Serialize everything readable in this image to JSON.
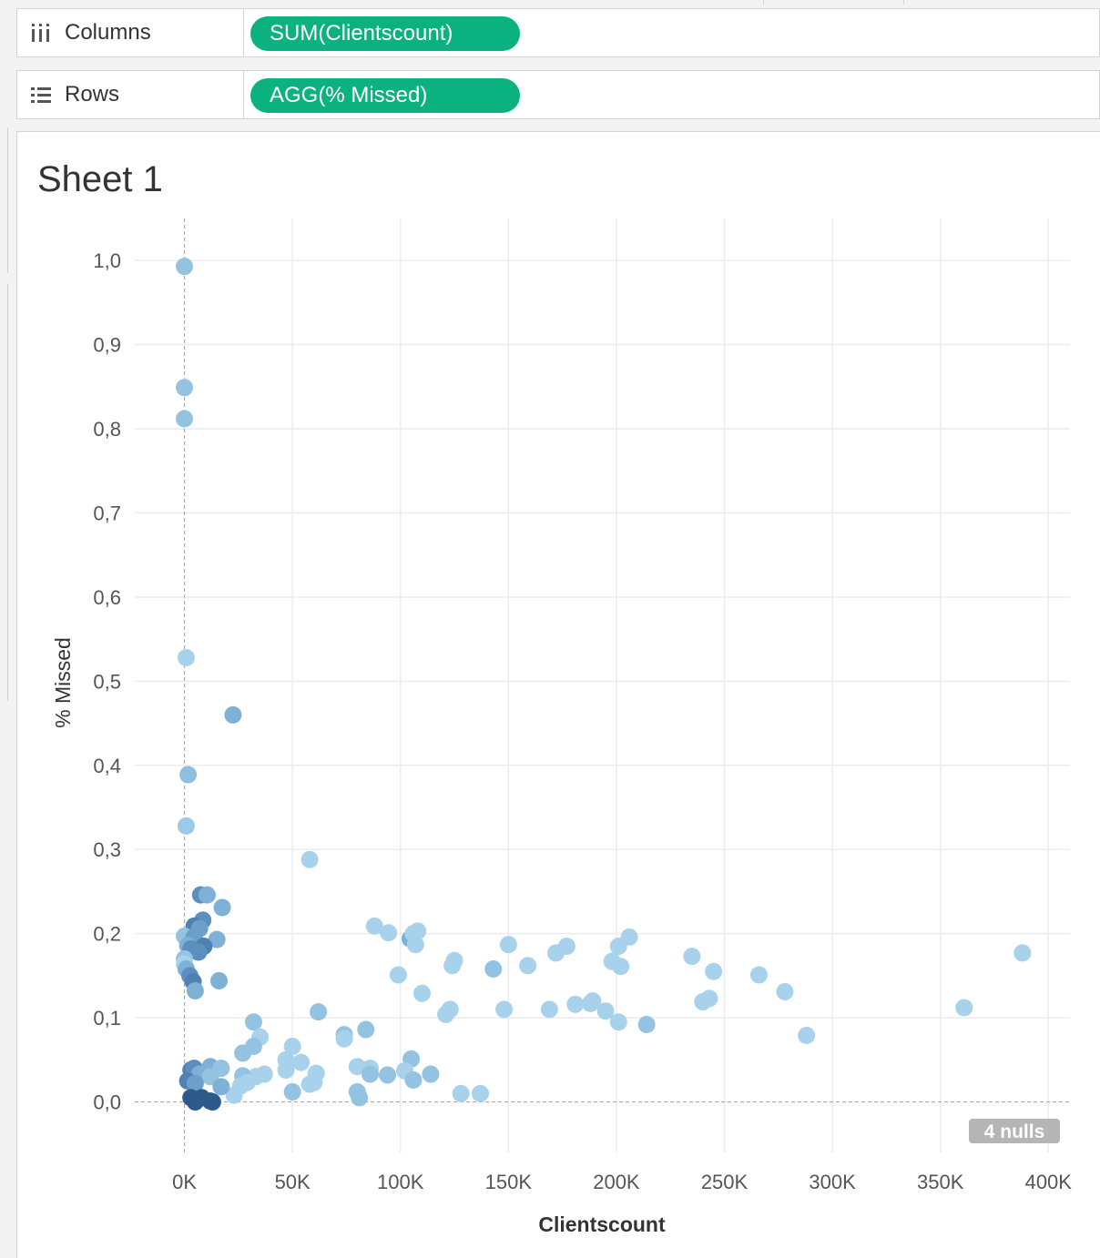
{
  "shelves": {
    "columns": {
      "label": "Columns",
      "pill": "SUM(Clientscount)"
    },
    "rows": {
      "label": "Rows",
      "pill": "AGG(% Missed)"
    }
  },
  "sheet": {
    "title": "Sheet 1"
  },
  "colors": {
    "pill": "#0bb27f",
    "nulls_badge": "#b5b5b5"
  },
  "chart_data": {
    "type": "scatter",
    "xlabel": "Clientscount",
    "ylabel": "% Missed",
    "xlim": [
      -23000,
      410000
    ],
    "ylim": [
      -0.06,
      1.05
    ],
    "x_ticks": [
      0,
      50000,
      100000,
      150000,
      200000,
      250000,
      300000,
      350000,
      400000
    ],
    "x_tick_labels": [
      "0K",
      "50K",
      "100K",
      "150K",
      "200K",
      "250K",
      "300K",
      "350K",
      "400K"
    ],
    "y_ticks": [
      0,
      0.1,
      0.2,
      0.3,
      0.4,
      0.5,
      0.6,
      0.7,
      0.8,
      0.9,
      1.0
    ],
    "y_tick_labels": [
      "0,0",
      "0,1",
      "0,2",
      "0,3",
      "0,4",
      "0,5",
      "0,6",
      "0,7",
      "0,8",
      "0,9",
      "1,0"
    ],
    "grid": true,
    "nulls_label": "4 nulls",
    "points": [
      {
        "x": 0,
        "y": 0.993,
        "c": "#94c3e1"
      },
      {
        "x": 0,
        "y": 0.849,
        "c": "#94c3e1"
      },
      {
        "x": 0,
        "y": 0.812,
        "c": "#94c3e1"
      },
      {
        "x": 800,
        "y": 0.528,
        "c": "#a8d2ec"
      },
      {
        "x": 22500,
        "y": 0.46,
        "c": "#7fb1d6"
      },
      {
        "x": 1700,
        "y": 0.389,
        "c": "#8fbfe0"
      },
      {
        "x": 800,
        "y": 0.328,
        "c": "#9cc9e7"
      },
      {
        "x": 58000,
        "y": 0.288,
        "c": "#a8d2ec"
      },
      {
        "x": 7500,
        "y": 0.246,
        "c": "#5c8fbe"
      },
      {
        "x": 10500,
        "y": 0.246,
        "c": "#7fb1d6"
      },
      {
        "x": 17500,
        "y": 0.231,
        "c": "#7fb1d6"
      },
      {
        "x": 8500,
        "y": 0.216,
        "c": "#5c8fbe"
      },
      {
        "x": 4500,
        "y": 0.209,
        "c": "#4f82b3"
      },
      {
        "x": 7000,
        "y": 0.206,
        "c": "#6c9fca"
      },
      {
        "x": 0,
        "y": 0.197,
        "c": "#94c3e1"
      },
      {
        "x": 4500,
        "y": 0.196,
        "c": "#6c9fca"
      },
      {
        "x": 15000,
        "y": 0.193,
        "c": "#7fb1d6"
      },
      {
        "x": 1500,
        "y": 0.186,
        "c": "#7fb1d6"
      },
      {
        "x": 9000,
        "y": 0.185,
        "c": "#4f82b3"
      },
      {
        "x": 3000,
        "y": 0.182,
        "c": "#5c8fbe"
      },
      {
        "x": 6500,
        "y": 0.178,
        "c": "#5c8fbe"
      },
      {
        "x": 0,
        "y": 0.17,
        "c": "#94c3e1"
      },
      {
        "x": 0,
        "y": 0.164,
        "c": "#a8d2ec"
      },
      {
        "x": 800,
        "y": 0.158,
        "c": "#7fb1d6"
      },
      {
        "x": 2500,
        "y": 0.15,
        "c": "#5c8fbe"
      },
      {
        "x": 4000,
        "y": 0.143,
        "c": "#4f82b3"
      },
      {
        "x": 16000,
        "y": 0.144,
        "c": "#7fb1d6"
      },
      {
        "x": 5000,
        "y": 0.132,
        "c": "#7fb1d6"
      },
      {
        "x": 88000,
        "y": 0.209,
        "c": "#a8d2ec"
      },
      {
        "x": 94500,
        "y": 0.201,
        "c": "#a8d2ec"
      },
      {
        "x": 104500,
        "y": 0.194,
        "c": "#7fb1d6"
      },
      {
        "x": 106000,
        "y": 0.2,
        "c": "#a8d2ec"
      },
      {
        "x": 108000,
        "y": 0.203,
        "c": "#a8d2ec"
      },
      {
        "x": 107000,
        "y": 0.187,
        "c": "#a8d2ec"
      },
      {
        "x": 150000,
        "y": 0.187,
        "c": "#a8d2ec"
      },
      {
        "x": 177000,
        "y": 0.185,
        "c": "#a8d2ec"
      },
      {
        "x": 172000,
        "y": 0.177,
        "c": "#a8d2ec"
      },
      {
        "x": 206000,
        "y": 0.196,
        "c": "#a8d2ec"
      },
      {
        "x": 201000,
        "y": 0.185,
        "c": "#a8d2ec"
      },
      {
        "x": 198000,
        "y": 0.167,
        "c": "#a8d2ec"
      },
      {
        "x": 202000,
        "y": 0.161,
        "c": "#a8d2ec"
      },
      {
        "x": 125000,
        "y": 0.168,
        "c": "#a8d2ec"
      },
      {
        "x": 124000,
        "y": 0.162,
        "c": "#a8d2ec"
      },
      {
        "x": 143000,
        "y": 0.158,
        "c": "#94c3e1"
      },
      {
        "x": 159000,
        "y": 0.162,
        "c": "#a8d2ec"
      },
      {
        "x": 99000,
        "y": 0.151,
        "c": "#a8d2ec"
      },
      {
        "x": 110000,
        "y": 0.129,
        "c": "#a8d2ec"
      },
      {
        "x": 235000,
        "y": 0.173,
        "c": "#a8d2ec"
      },
      {
        "x": 245000,
        "y": 0.155,
        "c": "#a8d2ec"
      },
      {
        "x": 266000,
        "y": 0.151,
        "c": "#a8d2ec"
      },
      {
        "x": 278000,
        "y": 0.131,
        "c": "#a8d2ec"
      },
      {
        "x": 243000,
        "y": 0.123,
        "c": "#a8d2ec"
      },
      {
        "x": 240000,
        "y": 0.119,
        "c": "#a8d2ec"
      },
      {
        "x": 388000,
        "y": 0.177,
        "c": "#a8d2ec"
      },
      {
        "x": 361000,
        "y": 0.112,
        "c": "#a8d2ec"
      },
      {
        "x": 288000,
        "y": 0.079,
        "c": "#a8d2ec"
      },
      {
        "x": 148000,
        "y": 0.11,
        "c": "#a8d2ec"
      },
      {
        "x": 169000,
        "y": 0.11,
        "c": "#a8d2ec"
      },
      {
        "x": 181000,
        "y": 0.116,
        "c": "#a8d2ec"
      },
      {
        "x": 188000,
        "y": 0.117,
        "c": "#a8d2ec"
      },
      {
        "x": 189000,
        "y": 0.12,
        "c": "#a8d2ec"
      },
      {
        "x": 195000,
        "y": 0.108,
        "c": "#a8d2ec"
      },
      {
        "x": 201000,
        "y": 0.095,
        "c": "#a8d2ec"
      },
      {
        "x": 214000,
        "y": 0.092,
        "c": "#94c3e1"
      },
      {
        "x": 123000,
        "y": 0.11,
        "c": "#a8d2ec"
      },
      {
        "x": 121000,
        "y": 0.104,
        "c": "#a8d2ec"
      },
      {
        "x": 62000,
        "y": 0.107,
        "c": "#94c3e1"
      },
      {
        "x": 32000,
        "y": 0.095,
        "c": "#94c3e1"
      },
      {
        "x": 35000,
        "y": 0.077,
        "c": "#a8d2ec"
      },
      {
        "x": 74000,
        "y": 0.08,
        "c": "#94c3e1"
      },
      {
        "x": 74000,
        "y": 0.075,
        "c": "#a8d2ec"
      },
      {
        "x": 84000,
        "y": 0.086,
        "c": "#94c3e1"
      },
      {
        "x": 32000,
        "y": 0.066,
        "c": "#94c3e1"
      },
      {
        "x": 27000,
        "y": 0.058,
        "c": "#94c3e1"
      },
      {
        "x": 50000,
        "y": 0.066,
        "c": "#a8d2ec"
      },
      {
        "x": 47000,
        "y": 0.05,
        "c": "#a8d2ec"
      },
      {
        "x": 54000,
        "y": 0.047,
        "c": "#a8d2ec"
      },
      {
        "x": 47000,
        "y": 0.038,
        "c": "#a8d2ec"
      },
      {
        "x": 61000,
        "y": 0.034,
        "c": "#a8d2ec"
      },
      {
        "x": 105000,
        "y": 0.051,
        "c": "#94c3e1"
      },
      {
        "x": 80000,
        "y": 0.042,
        "c": "#a8d2ec"
      },
      {
        "x": 86000,
        "y": 0.04,
        "c": "#a8d2ec"
      },
      {
        "x": 86000,
        "y": 0.033,
        "c": "#94c3e1"
      },
      {
        "x": 94000,
        "y": 0.032,
        "c": "#94c3e1"
      },
      {
        "x": 102000,
        "y": 0.037,
        "c": "#a8d2ec"
      },
      {
        "x": 106000,
        "y": 0.026,
        "c": "#94c3e1"
      },
      {
        "x": 114000,
        "y": 0.033,
        "c": "#94c3e1"
      },
      {
        "x": 128000,
        "y": 0.01,
        "c": "#a8d2ec"
      },
      {
        "x": 137000,
        "y": 0.01,
        "c": "#a8d2ec"
      },
      {
        "x": 50000,
        "y": 0.012,
        "c": "#94c3e1"
      },
      {
        "x": 58000,
        "y": 0.021,
        "c": "#a8d2ec"
      },
      {
        "x": 60000,
        "y": 0.023,
        "c": "#a8d2ec"
      },
      {
        "x": 80000,
        "y": 0.012,
        "c": "#94c3e1"
      },
      {
        "x": 81000,
        "y": 0.005,
        "c": "#94c3e1"
      },
      {
        "x": 37000,
        "y": 0.033,
        "c": "#a8d2ec"
      },
      {
        "x": 33000,
        "y": 0.03,
        "c": "#a8d2ec"
      },
      {
        "x": 27000,
        "y": 0.031,
        "c": "#94c3e1"
      },
      {
        "x": 26000,
        "y": 0.019,
        "c": "#a8d2ec"
      },
      {
        "x": 29000,
        "y": 0.023,
        "c": "#a8d2ec"
      },
      {
        "x": 23000,
        "y": 0.008,
        "c": "#a8d2ec"
      },
      {
        "x": 3000,
        "y": 0.038,
        "c": "#4f82b3"
      },
      {
        "x": 4500,
        "y": 0.04,
        "c": "#5c8fbe"
      },
      {
        "x": 12000,
        "y": 0.042,
        "c": "#7fb1d6"
      },
      {
        "x": 17000,
        "y": 0.04,
        "c": "#94c3e1"
      },
      {
        "x": 7000,
        "y": 0.033,
        "c": "#7fb1d6"
      },
      {
        "x": 12000,
        "y": 0.03,
        "c": "#94c3e1"
      },
      {
        "x": 1500,
        "y": 0.025,
        "c": "#4f82b3"
      },
      {
        "x": 5000,
        "y": 0.022,
        "c": "#6c9fca"
      },
      {
        "x": 17000,
        "y": 0.018,
        "c": "#7fb1d6"
      },
      {
        "x": 3000,
        "y": 0.005,
        "c": "#2d5a8a"
      },
      {
        "x": 5000,
        "y": 0.002,
        "c": "#2d5a8a"
      },
      {
        "x": 8000,
        "y": 0.005,
        "c": "#2d5a8a"
      },
      {
        "x": 5000,
        "y": 0.0,
        "c": "#2d5a8a"
      },
      {
        "x": 12000,
        "y": 0.001,
        "c": "#2d5a8a"
      },
      {
        "x": 13000,
        "y": 0.0,
        "c": "#2d5a8a"
      }
    ]
  }
}
